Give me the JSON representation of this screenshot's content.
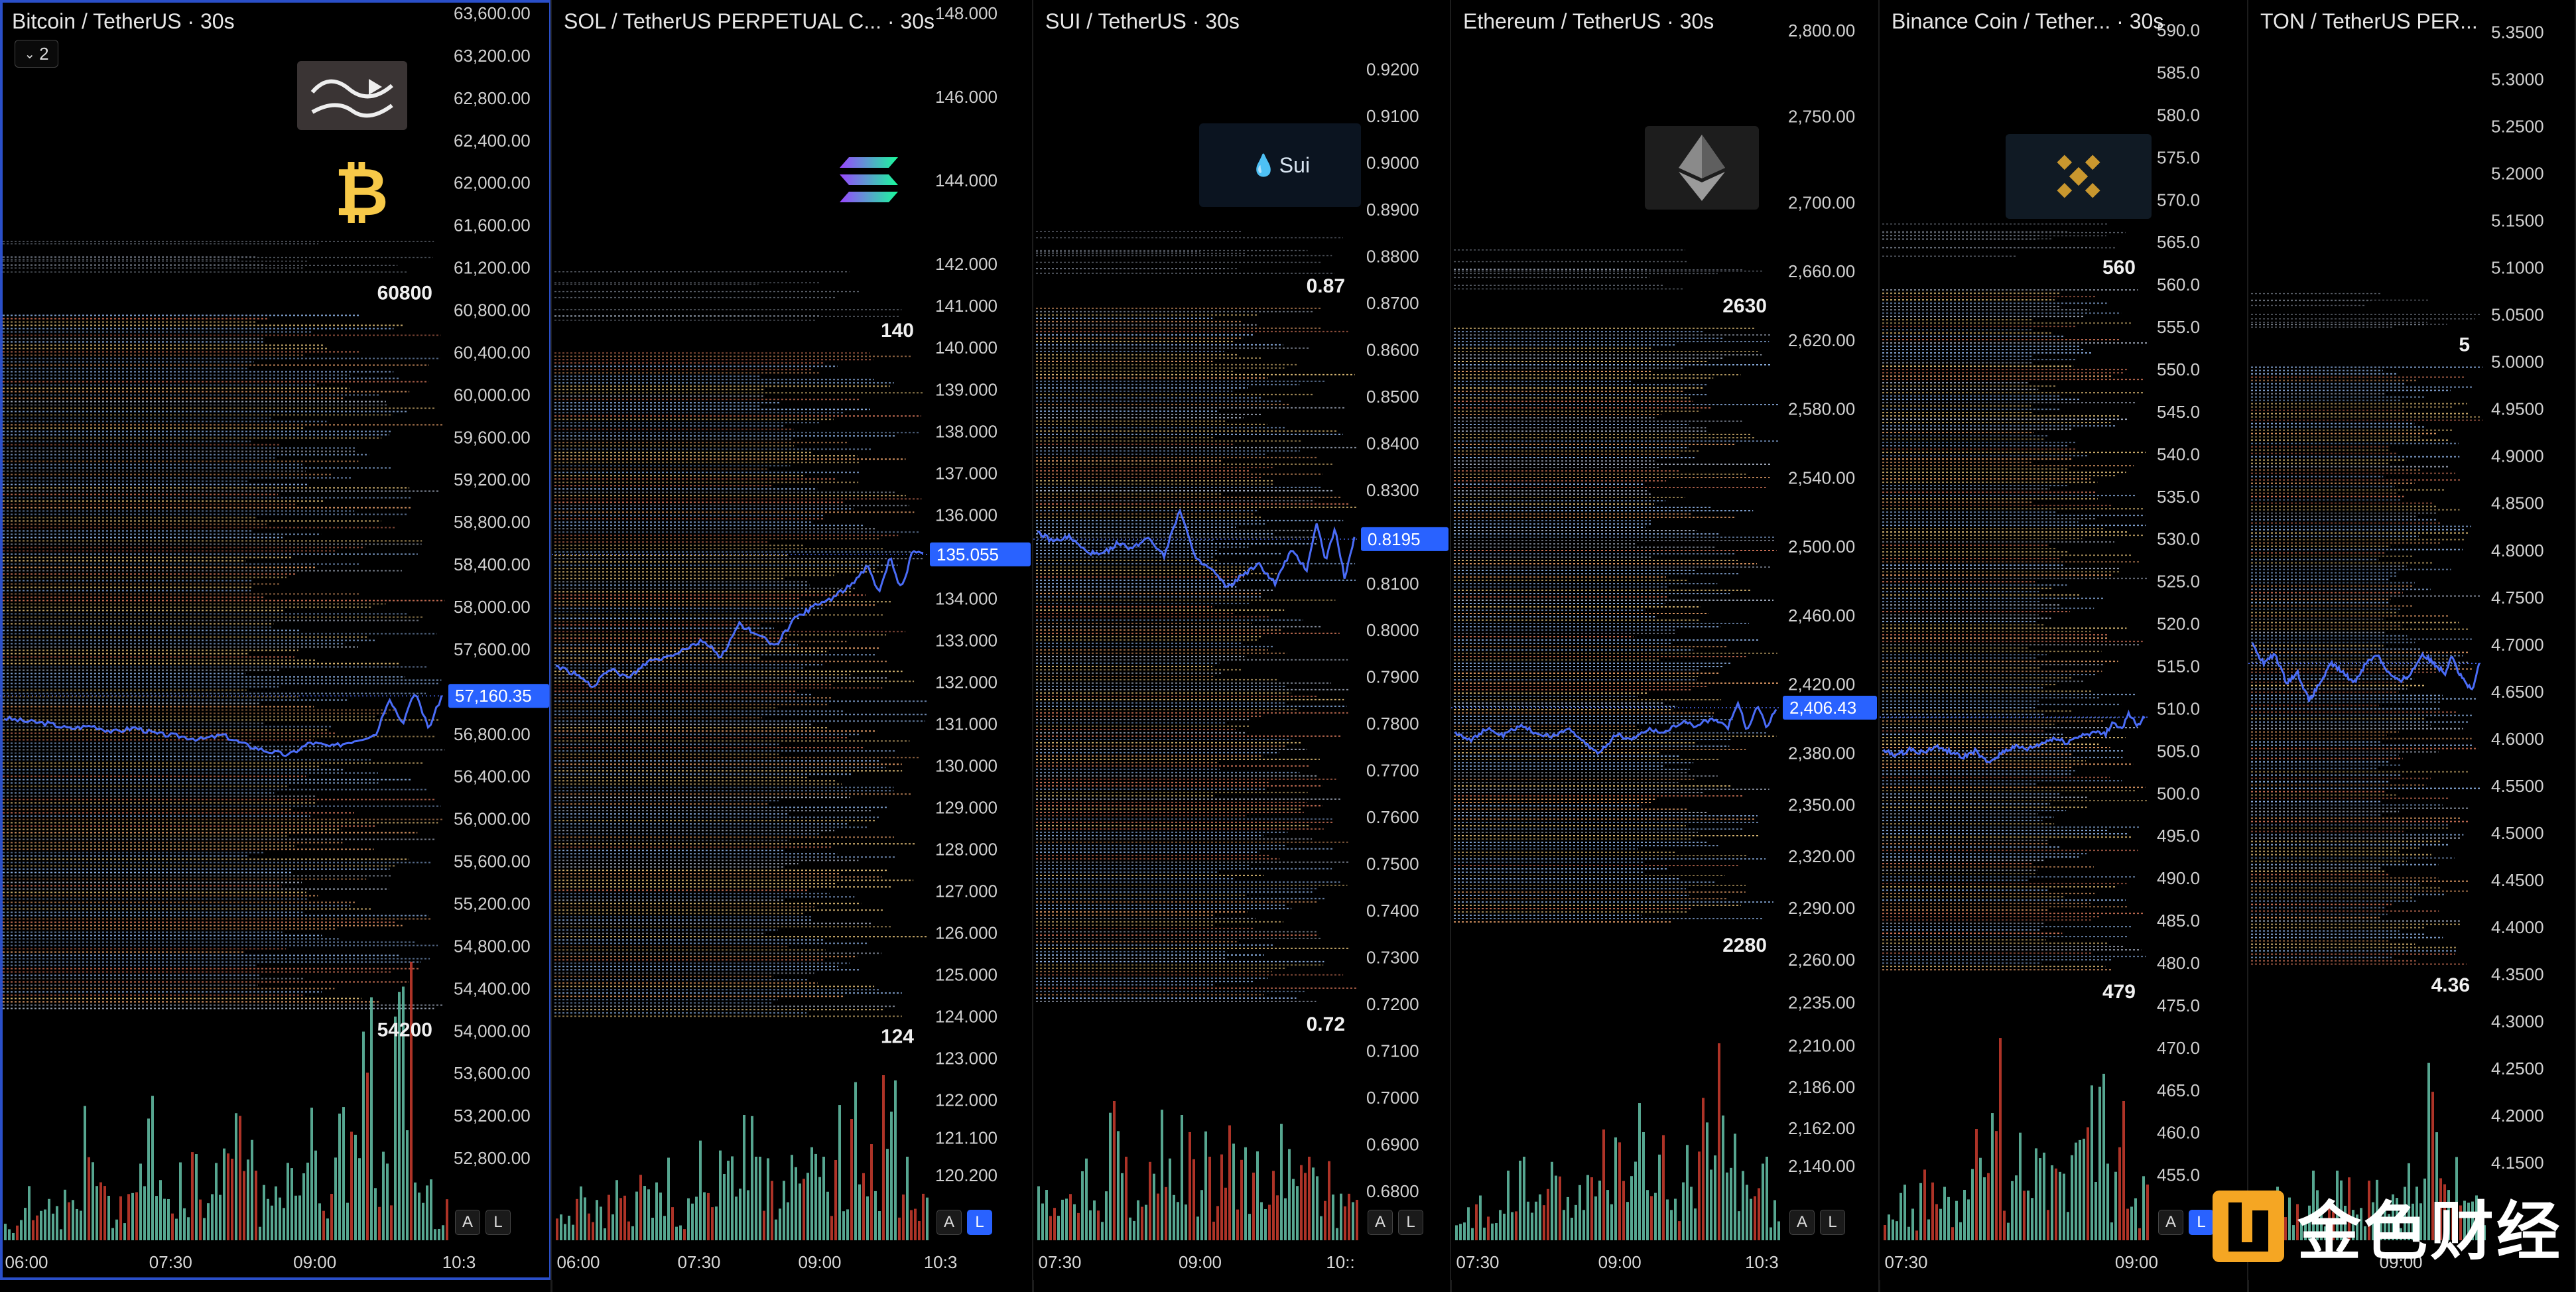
{
  "colors": {
    "price_line": "#4a6cf7",
    "volume_up": "#5fb8a0",
    "volume_down": "#c0392b",
    "accent": "#2962ff",
    "liq_blue": "#8fb4e8",
    "liq_yellow": "#e6c27a",
    "liq_orange": "#e8a06a",
    "liq_red": "#d9795c",
    "liq_grey": "#a7b1c4"
  },
  "watermark": {
    "text": "金色财经",
    "icon": "jinse-logo-icon"
  },
  "panels": [
    {
      "id": "btc",
      "title": "Bitcoin / TetherUS · 30s",
      "logo_icon": "bitcoin-icon",
      "logo_extra_icon": "marty-party-logo",
      "collapse_label": "2",
      "show_collapse": true,
      "buttons": [
        "A",
        "L"
      ],
      "active_button": "",
      "top_label": "60800",
      "bottom_label": "54200",
      "price_tag": "57,160.35",
      "active": true,
      "time_labels": [
        "06:00",
        "07:30",
        "09:00",
        "10:3"
      ],
      "chart_data": {
        "type": "line",
        "ylim": [
          52400,
          63600
        ],
        "axis_ticks": [
          "63,600.00",
          "63,200.00",
          "62,800.00",
          "62,400.00",
          "62,000.00",
          "61,600.00",
          "61,200.00",
          "60,800.00",
          "60,400.00",
          "60,000.00",
          "59,600.00",
          "59,200.00",
          "58,800.00",
          "58,400.00",
          "58,000.00",
          "57,600.00",
          "57,200.00",
          "56,800.00",
          "56,400.00",
          "56,000.00",
          "55,600.00",
          "55,200.00",
          "54,800.00",
          "54,400.00",
          "54,000.00",
          "53,600.00",
          "53,200.00",
          "52,800.00"
        ],
        "liquidation_band": [
          54200,
          60800
        ],
        "x": [
          0,
          0.05,
          0.1,
          0.15,
          0.2,
          0.25,
          0.3,
          0.35,
          0.4,
          0.45,
          0.5,
          0.55,
          0.6,
          0.65,
          0.7,
          0.75,
          0.8,
          0.85,
          0.88,
          0.91,
          0.94,
          0.97,
          1.0
        ],
        "price": [
          56950,
          56920,
          56900,
          56850,
          56880,
          56820,
          56860,
          56800,
          56780,
          56750,
          56790,
          56700,
          56640,
          56600,
          56720,
          56680,
          56740,
          56800,
          57150,
          56900,
          57200,
          56850,
          57160
        ],
        "current": 57160.35,
        "volume": [
          0.1,
          0.3,
          0.15,
          0.2,
          0.5,
          0.2,
          0.3,
          0.6,
          0.25,
          0.4,
          0.3,
          0.55,
          0.45,
          0.2,
          0.3,
          0.6,
          0.35,
          0.5,
          0.9,
          0.4,
          1.0,
          0.3,
          0.2
        ]
      }
    },
    {
      "id": "sol",
      "title": "SOL / TetherUS PERPETUAL C...  · 30s",
      "logo_icon": "solana-icon",
      "show_collapse": false,
      "buttons": [
        "A",
        "L"
      ],
      "active_button": "L",
      "top_label": "140",
      "bottom_label": "124",
      "price_tag": "135.055",
      "active": false,
      "time_labels": [
        "06:00",
        "07:30",
        "09:00",
        "10:3"
      ],
      "chart_data": {
        "type": "line",
        "ylim": [
          119.6,
          148.0
        ],
        "axis_ticks": [
          "148.000",
          "146.000",
          "144.000",
          "142.000",
          "141.000",
          "140.000",
          "139.000",
          "138.000",
          "137.000",
          "136.000",
          "135.000",
          "134.000",
          "133.000",
          "132.000",
          "131.000",
          "130.000",
          "129.000",
          "128.000",
          "127.000",
          "126.000",
          "125.000",
          "124.000",
          "123.000",
          "122.000",
          "121.100",
          "120.200"
        ],
        "liquidation_band": [
          124,
          140
        ],
        "x": [
          0,
          0.05,
          0.1,
          0.15,
          0.2,
          0.25,
          0.3,
          0.35,
          0.4,
          0.45,
          0.5,
          0.55,
          0.6,
          0.65,
          0.7,
          0.75,
          0.8,
          0.85,
          0.88,
          0.91,
          0.94,
          0.97,
          1.0
        ],
        "price": [
          132.4,
          132.2,
          131.9,
          132.3,
          132.1,
          132.5,
          132.6,
          132.8,
          133.0,
          132.6,
          133.4,
          133.1,
          132.9,
          133.5,
          133.8,
          134.0,
          134.3,
          134.8,
          134.1,
          135.0,
          134.2,
          135.1,
          135.055
        ],
        "current": 135.055,
        "volume": [
          0.1,
          0.2,
          0.15,
          0.3,
          0.2,
          0.25,
          0.3,
          0.2,
          0.4,
          0.3,
          0.35,
          0.45,
          0.3,
          0.25,
          0.6,
          0.4,
          0.3,
          0.5,
          0.8,
          0.4,
          0.9,
          0.3,
          0.2
        ]
      }
    },
    {
      "id": "sui",
      "title": "SUI / TetherUS · 30s",
      "logo_icon": "sui-icon",
      "logo_text": "Sui",
      "show_collapse": false,
      "buttons": [
        "A",
        "L"
      ],
      "active_button": "",
      "top_label": "0.87",
      "bottom_label": "0.72",
      "price_tag": "0.8195",
      "active": false,
      "time_labels": [
        "07:30",
        "09:00",
        "10::"
      ],
      "chart_data": {
        "type": "line",
        "ylim": [
          0.678,
          0.932
        ],
        "axis_ticks": [
          "0.9200",
          "0.9100",
          "0.9000",
          "0.8900",
          "0.8800",
          "0.8700",
          "0.8600",
          "0.8500",
          "0.8400",
          "0.8300",
          "0.8200",
          "0.8100",
          "0.8000",
          "0.7900",
          "0.7800",
          "0.7700",
          "0.7600",
          "0.7500",
          "0.7400",
          "0.7300",
          "0.7200",
          "0.7100",
          "0.7000",
          "0.6900",
          "0.6800"
        ],
        "liquidation_band": [
          0.72,
          0.87
        ],
        "x": [
          0,
          0.05,
          0.1,
          0.15,
          0.2,
          0.25,
          0.3,
          0.35,
          0.4,
          0.45,
          0.5,
          0.55,
          0.6,
          0.65,
          0.7,
          0.75,
          0.8,
          0.85,
          0.88,
          0.91,
          0.94,
          0.97,
          1.0
        ],
        "price": [
          0.821,
          0.819,
          0.82,
          0.817,
          0.816,
          0.8185,
          0.8175,
          0.82,
          0.816,
          0.826,
          0.815,
          0.813,
          0.809,
          0.812,
          0.814,
          0.81,
          0.817,
          0.813,
          0.823,
          0.815,
          0.822,
          0.811,
          0.8195
        ],
        "current": 0.8195,
        "volume": [
          0.2,
          0.3,
          0.25,
          0.4,
          0.2,
          0.5,
          0.3,
          0.35,
          0.6,
          0.3,
          0.45,
          0.4,
          0.3,
          0.5,
          0.35,
          0.4,
          0.3,
          0.5,
          0.35,
          0.3,
          0.4,
          0.2,
          0.25
        ]
      }
    },
    {
      "id": "eth",
      "title": "Ethereum / TetherUS · 30s",
      "logo_icon": "ethereum-icon",
      "show_collapse": false,
      "buttons": [
        "A",
        "L"
      ],
      "active_button": "",
      "top_label": "2630",
      "bottom_label": "2280",
      "price_tag": "2,406.43",
      "active": false,
      "time_labels": [
        "07:30",
        "09:00",
        "10:3"
      ],
      "chart_data": {
        "type": "line",
        "ylim": [
          2120,
          2810
        ],
        "axis_ticks": [
          "2,800.00",
          "2,750.00",
          "2,700.00",
          "2,660.00",
          "2,620.00",
          "2,580.00",
          "2,540.00",
          "2,500.00",
          "2,460.00",
          "2,420.00",
          "2,406.43",
          "2,380.00",
          "2,350.00",
          "2,320.00",
          "2,290.00",
          "2,260.00",
          "2,235.00",
          "2,210.00",
          "2,186.00",
          "2,162.00",
          "2,140.00"
        ],
        "liquidation_band": [
          2280,
          2630
        ],
        "x": [
          0,
          0.05,
          0.1,
          0.15,
          0.2,
          0.25,
          0.3,
          0.35,
          0.4,
          0.45,
          0.5,
          0.55,
          0.6,
          0.65,
          0.7,
          0.75,
          0.8,
          0.85,
          0.88,
          0.91,
          0.94,
          0.97,
          1.0
        ],
        "price": [
          2392,
          2388,
          2394,
          2390,
          2396,
          2392,
          2389,
          2395,
          2386,
          2380,
          2391,
          2388,
          2394,
          2392,
          2398,
          2396,
          2400,
          2395,
          2410,
          2392,
          2408,
          2395,
          2406.43
        ],
        "current": 2406.43,
        "volume": [
          0.15,
          0.2,
          0.1,
          0.25,
          0.3,
          0.2,
          0.3,
          0.25,
          0.4,
          0.3,
          0.5,
          0.45,
          0.6,
          0.4,
          0.5,
          0.3,
          0.55,
          0.6,
          0.9,
          0.4,
          0.5,
          0.3,
          0.2
        ]
      }
    },
    {
      "id": "bnb",
      "title": "Binance Coin / Tether...  · 30s",
      "logo_icon": "binance-icon",
      "show_collapse": false,
      "buttons": [
        "A",
        "L"
      ],
      "active_button": "L",
      "top_label": "560",
      "bottom_label": "479",
      "price_tag": "",
      "active": false,
      "time_labels": [
        "07:30",
        "09:00"
      ],
      "chart_data": {
        "type": "line",
        "ylim": [
          452,
          592
        ],
        "axis_ticks": [
          "590.0",
          "585.0",
          "580.0",
          "575.0",
          "570.0",
          "565.0",
          "560.0",
          "555.0",
          "550.0",
          "545.0",
          "540.0",
          "535.0",
          "530.0",
          "525.0",
          "520.0",
          "515.0",
          "510.0",
          "505.0",
          "500.0",
          "495.0",
          "490.0",
          "485.0",
          "480.0",
          "475.0",
          "470.0",
          "465.0",
          "460.0",
          "455.0"
        ],
        "liquidation_band": [
          479,
          560
        ],
        "x": [
          0,
          0.05,
          0.1,
          0.15,
          0.2,
          0.25,
          0.3,
          0.35,
          0.4,
          0.45,
          0.5,
          0.55,
          0.6,
          0.65,
          0.7,
          0.75,
          0.8,
          0.85,
          0.88,
          0.91,
          0.94,
          0.97,
          1.0
        ],
        "price": [
          505,
          504.5,
          505.2,
          504.8,
          505.5,
          505.0,
          504.2,
          505.0,
          503.5,
          504.8,
          505.5,
          505.2,
          505.8,
          506.5,
          506.0,
          506.8,
          507.2,
          507.0,
          508.5,
          507.5,
          509.5,
          507.8,
          509.0
        ],
        "current": 509.0,
        "volume": [
          0.1,
          0.2,
          0.15,
          0.3,
          0.25,
          0.2,
          0.3,
          0.4,
          0.35,
          0.9,
          0.3,
          0.4,
          0.3,
          0.5,
          0.35,
          0.45,
          0.4,
          1.0,
          0.6,
          0.3,
          0.5,
          0.2,
          0.25
        ]
      }
    },
    {
      "id": "ton",
      "title": "TON / TetherUS PER...",
      "logo_icon": "",
      "show_collapse": false,
      "buttons": [],
      "active_button": "",
      "top_label": "5",
      "bottom_label": "4.36",
      "price_tag": "",
      "active": false,
      "time_labels": [
        "09:00"
      ],
      "chart_data": {
        "type": "line",
        "ylim": [
          4.11,
          5.37
        ],
        "axis_ticks": [
          "5.3500",
          "5.3000",
          "5.2500",
          "5.2000",
          "5.1500",
          "5.1000",
          "5.0500",
          "5.0000",
          "4.9500",
          "4.9000",
          "4.8500",
          "4.8000",
          "4.7500",
          "4.7000",
          "4.6500",
          "4.6000",
          "4.5500",
          "4.5000",
          "4.4500",
          "4.4000",
          "4.3500",
          "4.3000",
          "4.2500",
          "4.2000",
          "4.1500"
        ],
        "liquidation_band": [
          4.36,
          5.0
        ],
        "x": [
          0,
          0.05,
          0.1,
          0.15,
          0.2,
          0.25,
          0.3,
          0.35,
          0.4,
          0.45,
          0.5,
          0.55,
          0.6,
          0.65,
          0.7,
          0.75,
          0.8,
          0.85,
          0.88,
          0.91,
          0.94,
          0.97,
          1.0
        ],
        "price": [
          4.7,
          4.68,
          4.69,
          4.66,
          4.67,
          4.64,
          4.66,
          4.68,
          4.67,
          4.66,
          4.68,
          4.69,
          4.67,
          4.66,
          4.67,
          4.69,
          4.68,
          4.67,
          4.69,
          4.67,
          4.66,
          4.65,
          4.68
        ],
        "current": 4.68,
        "volume": [
          0.2,
          0.25,
          0.3,
          0.2,
          0.15,
          0.25,
          0.3,
          0.2,
          0.25,
          0.3,
          0.2,
          0.35,
          0.3,
          0.25,
          0.2,
          0.3,
          0.5,
          0.9,
          0.4,
          0.3,
          0.35,
          0.2,
          0.25
        ]
      }
    }
  ]
}
